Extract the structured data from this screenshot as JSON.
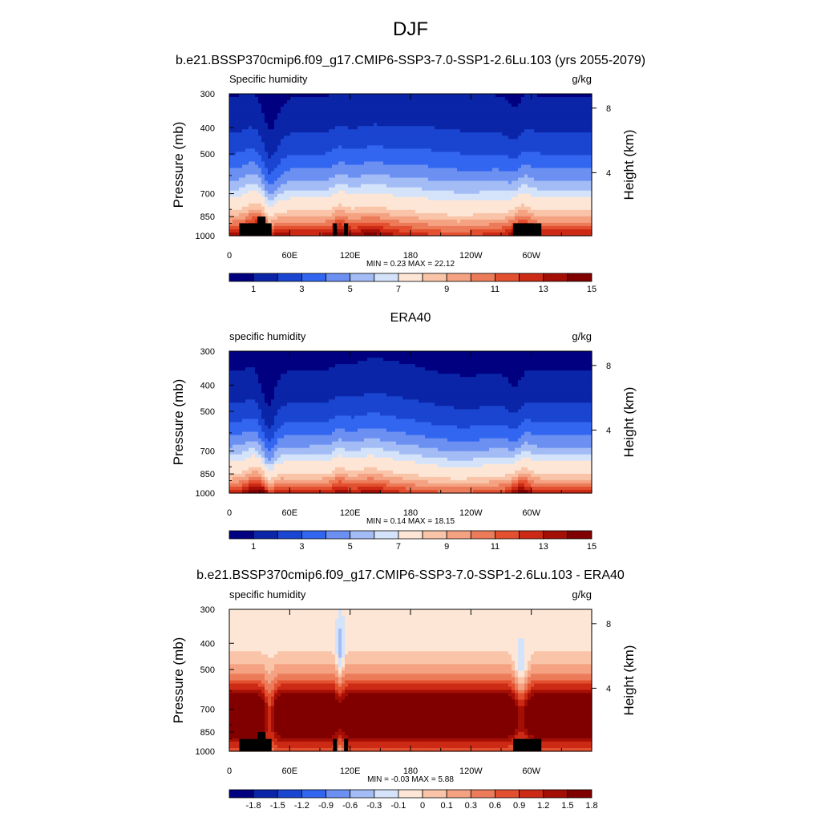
{
  "figure": {
    "title": "DJF"
  },
  "colorbar_labels_main": [
    "1",
    "3",
    "5",
    "7",
    "9",
    "11",
    "13",
    "15"
  ],
  "colorbar_labels_diff": [
    "-1.8",
    "-1.5",
    "-1.2",
    "-0.9",
    "-0.6",
    "-0.3",
    "-0.1",
    "0",
    "0.1",
    "0.3",
    "0.6",
    "0.9",
    "1.2",
    "1.5",
    "1.8"
  ],
  "colors": {
    "palette": [
      "#000080",
      "#0a25a8",
      "#1a45d0",
      "#3366f0",
      "#6b90f2",
      "#a3bcf5",
      "#d4e3fa",
      "#fde6d6",
      "#f9c4a8",
      "#f4a282",
      "#ec7b5a",
      "#e3502f",
      "#cc2a14",
      "#a30e05",
      "#800000"
    ]
  },
  "chart_data": [
    {
      "type": "heatmap",
      "panel_title": "b.e21.BSSP370cmip6.f09_g17.CMIP6-SSP3-7.0-SSP1-2.6Lu.103 (yrs 2055-2079)",
      "field_label": "Specific humidity",
      "units": "g/kg",
      "ylabel": "Pressure (mb)",
      "ylabel_right": "Height (km)",
      "x_ticks": [
        "0",
        "60E",
        "120E",
        "180",
        "120W",
        "60W"
      ],
      "x_tick_lon": [
        0,
        60,
        120,
        180,
        240,
        300
      ],
      "x_range": [
        0,
        360
      ],
      "y_ticks": [
        "300",
        "400",
        "500",
        "700",
        "850",
        "1000"
      ],
      "y_tick_p": [
        300,
        400,
        500,
        700,
        850,
        1000
      ],
      "y_range": [
        1000,
        300
      ],
      "y_scale": "log",
      "right_ticks": [
        "8",
        "4"
      ],
      "right_tick_km": [
        8,
        4
      ],
      "min": 0.23,
      "max": 22.12,
      "minmax_text": "MIN =   0.23  MAX =   22.12",
      "contour_levels": [
        1,
        2,
        3,
        4,
        5,
        6,
        7,
        8,
        9,
        10,
        11,
        12,
        13,
        14,
        15
      ],
      "colorbar_labels": "main",
      "topography": true
    },
    {
      "type": "heatmap",
      "panel_title": "ERA40",
      "field_label": "specific humidity",
      "units": "g/kg",
      "ylabel": "Pressure (mb)",
      "ylabel_right": "Height (km)",
      "x_ticks": [
        "0",
        "60E",
        "120E",
        "180",
        "120W",
        "60W"
      ],
      "x_tick_lon": [
        0,
        60,
        120,
        180,
        240,
        300
      ],
      "x_range": [
        0,
        360
      ],
      "y_ticks": [
        "300",
        "400",
        "500",
        "700",
        "850",
        "1000"
      ],
      "y_tick_p": [
        300,
        400,
        500,
        700,
        850,
        1000
      ],
      "y_range": [
        1000,
        300
      ],
      "y_scale": "log",
      "right_ticks": [
        "8",
        "4"
      ],
      "right_tick_km": [
        8,
        4
      ],
      "min": 0.14,
      "max": 18.15,
      "minmax_text": "MIN =   0.14  MAX =   18.15",
      "contour_levels": [
        1,
        2,
        3,
        4,
        5,
        6,
        7,
        8,
        9,
        10,
        11,
        12,
        13,
        14,
        15
      ],
      "colorbar_labels": "main",
      "topography": false
    },
    {
      "type": "heatmap",
      "panel_title": "b.e21.BSSP370cmip6.f09_g17.CMIP6-SSP3-7.0-SSP1-2.6Lu.103 - ERA40",
      "field_label": "specific humidity",
      "units": "g/kg",
      "ylabel": "Pressure (mb)",
      "ylabel_right": "Height (km)",
      "x_ticks": [
        "0",
        "60E",
        "120E",
        "180",
        "120W",
        "60W"
      ],
      "x_tick_lon": [
        0,
        60,
        120,
        180,
        240,
        300
      ],
      "x_range": [
        0,
        360
      ],
      "y_ticks": [
        "300",
        "400",
        "500",
        "700",
        "850",
        "1000"
      ],
      "y_tick_p": [
        300,
        400,
        500,
        700,
        850,
        1000
      ],
      "y_range": [
        1000,
        300
      ],
      "y_scale": "log",
      "right_ticks": [
        "8",
        "4"
      ],
      "right_tick_km": [
        8,
        4
      ],
      "min": -0.03,
      "max": 5.88,
      "minmax_text": "MIN =  -0.03  MAX =    5.88",
      "contour_levels": [
        -1.8,
        -1.5,
        -1.2,
        -0.9,
        -0.6,
        -0.3,
        -0.1,
        0,
        0.1,
        0.3,
        0.6,
        0.9,
        1.2,
        1.5,
        1.8
      ],
      "colorbar_labels": "diff",
      "topography": true
    }
  ]
}
